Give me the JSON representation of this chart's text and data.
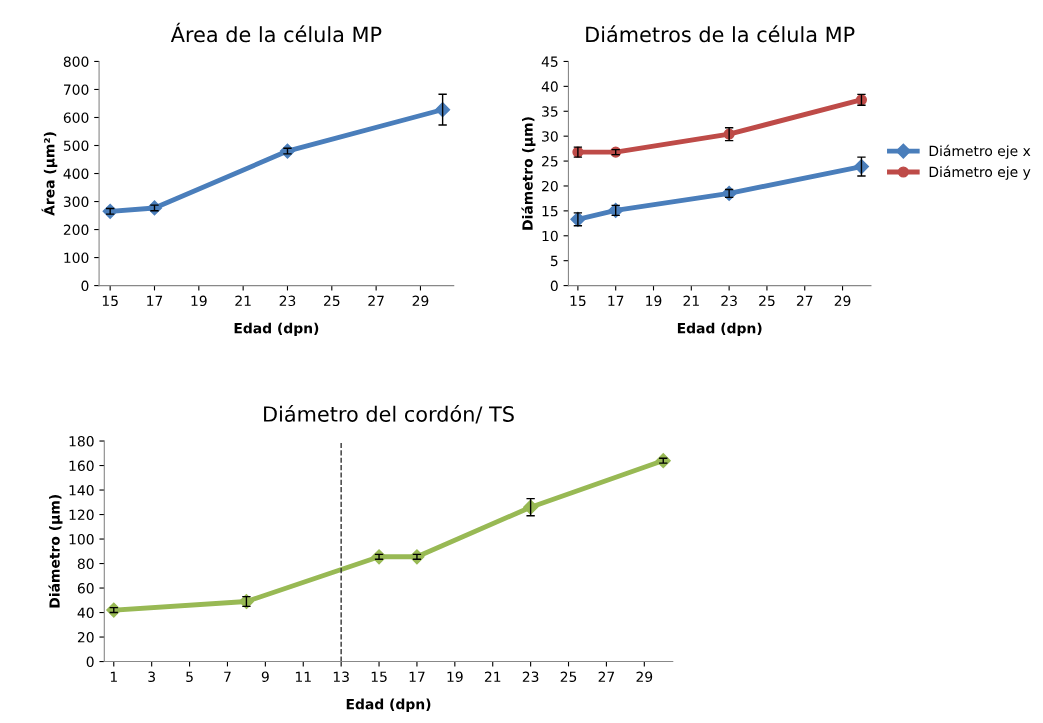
{
  "chart_data": [
    {
      "type": "line",
      "title": "Área de la célula MP",
      "xlabel": "Edad (dpn)",
      "ylabel": "Área (µm²)",
      "x": [
        15,
        17,
        23,
        30
      ],
      "series": [
        {
          "color": "#4a7ebb",
          "values": [
            265,
            277,
            480,
            628
          ],
          "errors": [
            10,
            10,
            10,
            55
          ]
        }
      ],
      "xlim": [
        14.5,
        30.5
      ],
      "xticks": [
        15,
        17,
        19,
        21,
        23,
        25,
        27,
        29
      ],
      "ylim": [
        0,
        800
      ],
      "yticks": [
        0,
        100,
        200,
        300,
        400,
        500,
        600,
        700,
        800
      ],
      "marker": "diamond",
      "grid": false,
      "legend": false
    },
    {
      "type": "line",
      "title": "Diámetros de la célula MP",
      "xlabel": "Edad (dpn)",
      "ylabel": "Diámetro (µm)",
      "x": [
        15,
        17,
        23,
        30
      ],
      "series": [
        {
          "name": "Diámetro eje x",
          "color": "#4a7ebb",
          "marker": "diamond",
          "values": [
            13.3,
            15.1,
            18.5,
            23.9
          ],
          "errors": [
            1.3,
            1,
            0.8,
            1.9
          ]
        },
        {
          "name": "Diámetro eje y",
          "color": "#be4b48",
          "marker": "circle",
          "values": [
            26.8,
            26.8,
            30.4,
            37.3
          ],
          "errors": [
            1,
            0.5,
            1.3,
            1.1
          ]
        }
      ],
      "xlim": [
        14.5,
        30.5
      ],
      "xticks": [
        15,
        17,
        19,
        21,
        23,
        25,
        27,
        29
      ],
      "ylim": [
        0,
        45
      ],
      "yticks": [
        0,
        5,
        10,
        15,
        20,
        25,
        30,
        35,
        40,
        45
      ],
      "grid": false,
      "legend": "right"
    },
    {
      "type": "line",
      "title": "Diámetro del cordón/ TS",
      "xlabel": "Edad (dpn)",
      "ylabel": "Diámetro (µm)",
      "x": [
        1,
        8,
        15,
        17,
        23,
        30
      ],
      "series": [
        {
          "color": "#98b954",
          "values": [
            42,
            49,
            85.5,
            85.5,
            126,
            164
          ],
          "errors": [
            2,
            4,
            2,
            2,
            7,
            2
          ]
        }
      ],
      "xlim": [
        0.5,
        30.5
      ],
      "xticks": [
        1,
        3,
        5,
        7,
        9,
        11,
        13,
        15,
        17,
        19,
        21,
        23,
        25,
        27,
        29
      ],
      "ylim": [
        0,
        180
      ],
      "yticks": [
        0,
        20,
        40,
        60,
        80,
        100,
        120,
        140,
        160,
        180
      ],
      "marker": "diamond",
      "grid": false,
      "legend": false,
      "ref_lines": [
        {
          "axis": "x",
          "value": 13,
          "color": "#333333",
          "line_style": "dashed"
        }
      ]
    }
  ]
}
